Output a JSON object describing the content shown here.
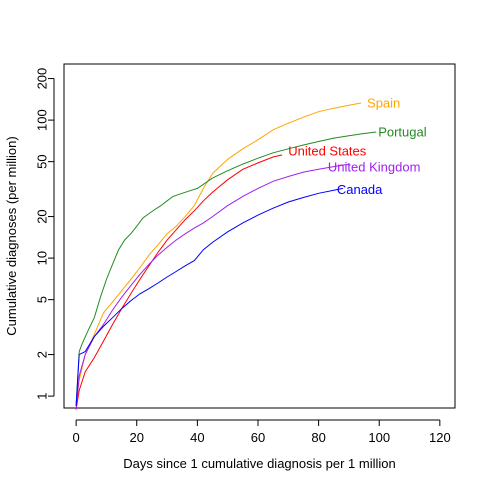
{
  "chart_data": {
    "type": "line",
    "xlabel": "Days since 1 cumulative diagnosis per 1 million",
    "ylabel": "Cumulative diagnoses (per million)",
    "ylog": true,
    "xlim": [
      -4,
      125
    ],
    "ylim": [
      0.82,
      255
    ],
    "xticks": [
      0,
      20,
      40,
      60,
      80,
      100,
      120
    ],
    "yticks": [
      1,
      2,
      5,
      10,
      20,
      50,
      100,
      200
    ],
    "grid": false,
    "legend": "direct labels at line ends",
    "series": [
      {
        "name": "Spain",
        "color": "#FFA500",
        "x": [
          0,
          1,
          3,
          6,
          9,
          12,
          15,
          18,
          21,
          24,
          27,
          30,
          33,
          36,
          39,
          42,
          45,
          50,
          55,
          60,
          65,
          70,
          75,
          80,
          85,
          90,
          94
        ],
        "y": [
          0.9,
          1.3,
          2.0,
          2.8,
          4.0,
          4.8,
          5.8,
          7.0,
          8.5,
          10.5,
          12.5,
          15.0,
          17.0,
          20.0,
          24.0,
          32.0,
          41.0,
          52.0,
          62.0,
          72.0,
          85.0,
          95.0,
          105.0,
          115.0,
          122.0,
          128.0,
          133.0
        ]
      },
      {
        "name": "Portugal",
        "color": "#228B22",
        "x": [
          0,
          1,
          2,
          4,
          6,
          8,
          10,
          12,
          14,
          16,
          18,
          20,
          22,
          24,
          26,
          28,
          30,
          32,
          34,
          36,
          38,
          40,
          45,
          50,
          55,
          60,
          65,
          70,
          75,
          80,
          85,
          90,
          95,
          99
        ],
        "y": [
          0.85,
          2.1,
          2.4,
          3.0,
          3.7,
          5.2,
          7.0,
          9.0,
          11.5,
          13.5,
          15.0,
          17.0,
          19.5,
          21.0,
          22.5,
          24.0,
          26.0,
          28.0,
          29.0,
          30.0,
          31.0,
          32.0,
          38.0,
          43.0,
          48.0,
          53.0,
          58.0,
          62.0,
          66.0,
          70.0,
          74.0,
          77.0,
          80.0,
          82.0
        ]
      },
      {
        "name": "United States",
        "color": "#FF0000",
        "x": [
          0,
          1,
          3,
          6,
          9,
          12,
          15,
          18,
          21,
          24,
          27,
          30,
          33,
          36,
          39,
          42,
          45,
          50,
          55,
          60,
          65,
          68
        ],
        "y": [
          0.8,
          1.1,
          1.5,
          1.9,
          2.5,
          3.3,
          4.3,
          5.5,
          7.0,
          8.8,
          11.0,
          13.5,
          16.0,
          19.0,
          22.0,
          26.0,
          30.0,
          37.0,
          44.0,
          49.0,
          54.0,
          56.0
        ]
      },
      {
        "name": "United Kingdom",
        "color": "#A020F0",
        "x": [
          0,
          1,
          3,
          6,
          9,
          12,
          15,
          18,
          21,
          24,
          27,
          30,
          33,
          36,
          39,
          42,
          45,
          50,
          55,
          60,
          65,
          70,
          75,
          80,
          85,
          90
        ],
        "y": [
          0.8,
          1.4,
          2.0,
          2.7,
          3.3,
          4.2,
          5.2,
          6.3,
          7.6,
          9.0,
          10.5,
          12.0,
          13.5,
          15.0,
          16.5,
          18.0,
          20.0,
          24.0,
          28.0,
          32.0,
          36.0,
          39.0,
          42.0,
          44.0,
          46.0,
          48.0
        ]
      },
      {
        "name": "Canada",
        "color": "#0000FF",
        "x": [
          0,
          1,
          3,
          6,
          9,
          12,
          15,
          18,
          21,
          24,
          27,
          30,
          33,
          36,
          39,
          42,
          45,
          50,
          55,
          60,
          65,
          70,
          75,
          80,
          85,
          88
        ],
        "y": [
          0.85,
          2.0,
          2.1,
          2.7,
          3.2,
          3.7,
          4.3,
          4.9,
          5.5,
          6.0,
          6.6,
          7.3,
          8.0,
          8.8,
          9.6,
          11.5,
          13.0,
          15.5,
          18.0,
          20.5,
          23.0,
          25.5,
          27.5,
          29.5,
          31.0,
          32.0
        ]
      }
    ]
  }
}
